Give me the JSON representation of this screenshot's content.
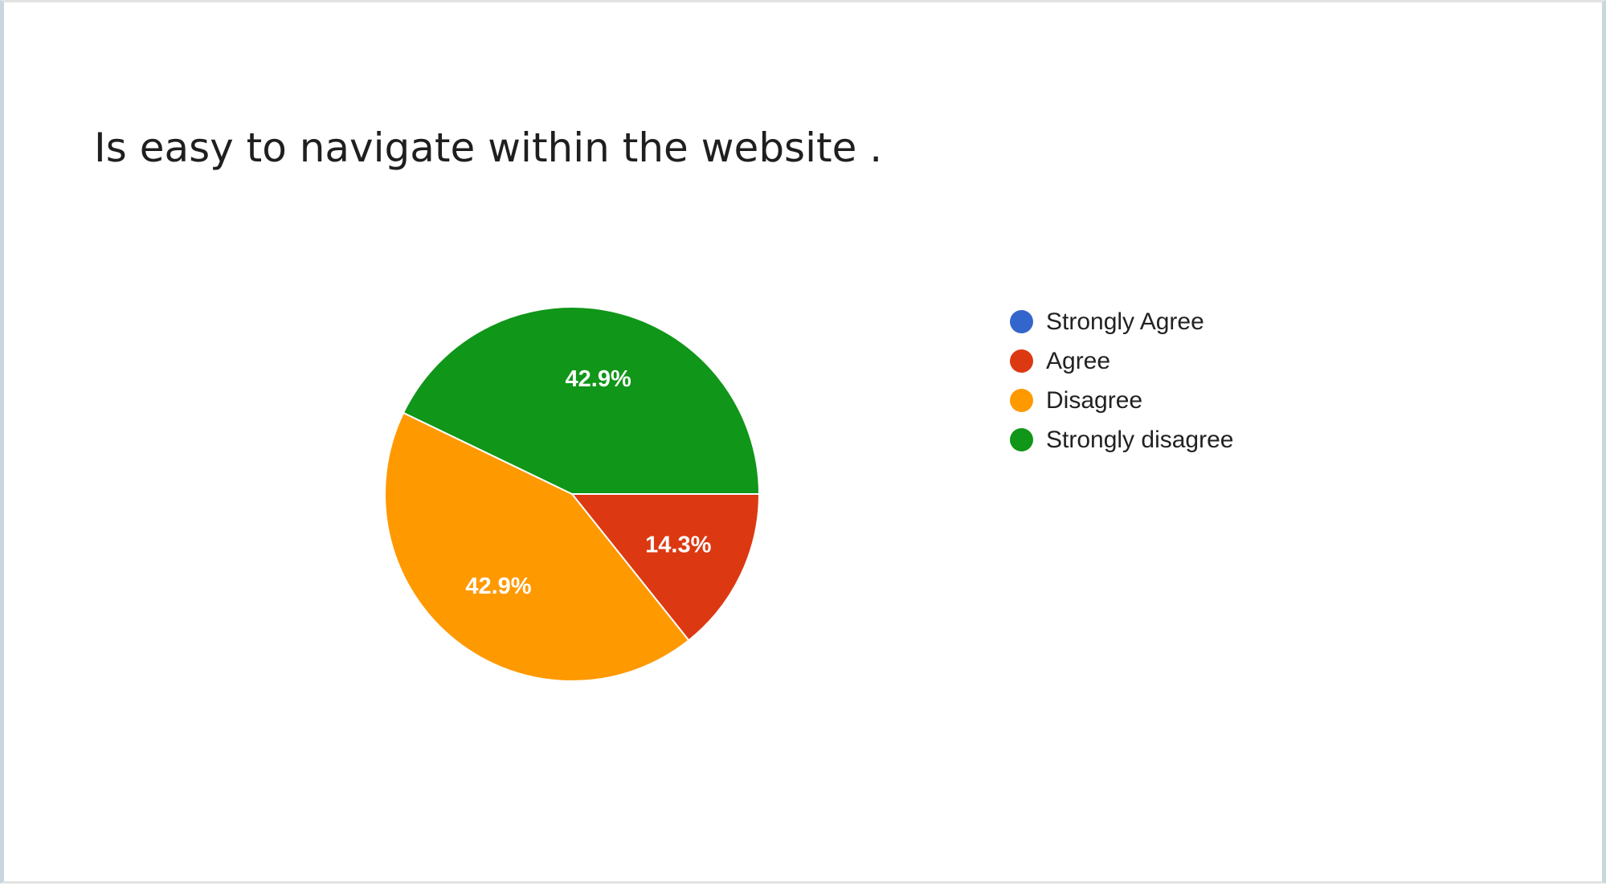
{
  "chart_data": {
    "type": "pie",
    "title": "Is easy to navigate within the website .",
    "categories": [
      "Strongly Agree",
      "Agree",
      "Disagree",
      "Strongly disagree"
    ],
    "values": [
      0,
      14.3,
      42.9,
      42.9
    ],
    "slice_labels": [
      "",
      "14.3%",
      "42.9%",
      "42.9%"
    ],
    "colors": [
      "#3366cc",
      "#dc3912",
      "#ff9900",
      "#109618"
    ],
    "legend_position": "right"
  }
}
